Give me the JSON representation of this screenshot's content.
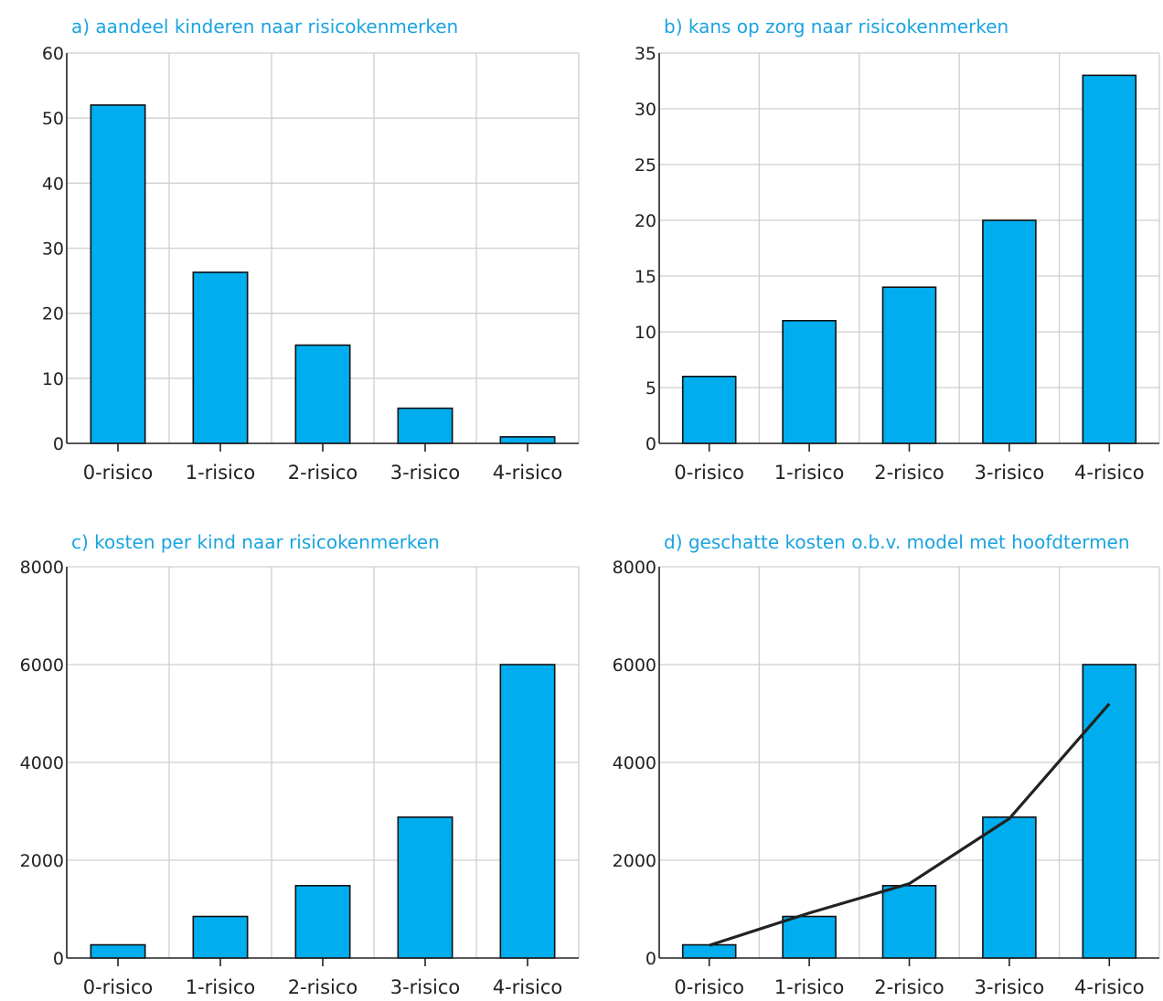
{
  "colors": {
    "bar": "#00aeef",
    "title": "#1aa3e0",
    "line": "#222222"
  },
  "chart_data": [
    {
      "type": "bar",
      "title": "a) aandeel kinderen naar risicokenmerken",
      "categories": [
        "0-risico",
        "1-risico",
        "2-risico",
        "3-risico",
        "4-risico"
      ],
      "values": [
        52,
        26.3,
        15.1,
        5.4,
        1.0
      ],
      "ylim": [
        0,
        60
      ],
      "yticks": [
        0,
        10,
        20,
        30,
        40,
        50,
        60
      ],
      "grid": true
    },
    {
      "type": "bar",
      "title": "b) kans op zorg naar risicokenmerken",
      "categories": [
        "0-risico",
        "1-risico",
        "2-risico",
        "3-risico",
        "4-risico"
      ],
      "values": [
        6,
        11,
        14,
        20,
        33
      ],
      "ylim": [
        0,
        35
      ],
      "yticks": [
        0,
        5,
        10,
        15,
        20,
        25,
        30,
        35
      ],
      "grid": true
    },
    {
      "type": "bar",
      "title": "c) kosten per kind naar risicokenmerken",
      "categories": [
        "0-risico",
        "1-risico",
        "2-risico",
        "3-risico",
        "4-risico"
      ],
      "values": [
        270,
        850,
        1480,
        2880,
        6000
      ],
      "ylim": [
        0,
        8000
      ],
      "yticks": [
        0,
        2000,
        4000,
        6000,
        8000
      ],
      "grid": true
    },
    {
      "type": "bar",
      "title": "d) geschatte kosten o.b.v. model met hoofdtermen",
      "categories": [
        "0-risico",
        "1-risico",
        "2-risico",
        "3-risico",
        "4-risico"
      ],
      "values": [
        270,
        850,
        1480,
        2880,
        6000
      ],
      "line_values": [
        260,
        920,
        1520,
        2850,
        5200
      ],
      "ylim": [
        0,
        8000
      ],
      "yticks": [
        0,
        2000,
        4000,
        6000,
        8000
      ],
      "grid": true
    }
  ]
}
